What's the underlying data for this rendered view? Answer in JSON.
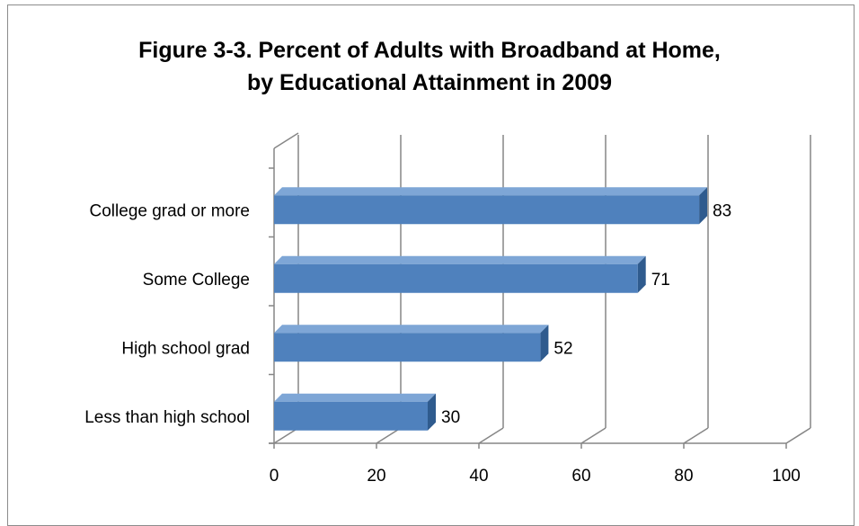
{
  "chart_data": {
    "type": "bar",
    "orientation": "horizontal",
    "title_line1": "Figure 3-3. Percent of Adults with Broadband at Home,",
    "title_line2": "by Educational Attainment in 2009",
    "categories": [
      "College grad or more",
      "Some College",
      "High school grad",
      "Less than high school"
    ],
    "values": [
      83,
      71,
      52,
      30
    ],
    "xlim": [
      0,
      100
    ],
    "xticks": [
      0,
      20,
      40,
      60,
      80,
      100
    ],
    "grid": true,
    "legend": "none",
    "bar_color": "#4f81bd",
    "bar_top_color": "#7ea6d6",
    "bar_side_color": "#2f5b8e"
  }
}
